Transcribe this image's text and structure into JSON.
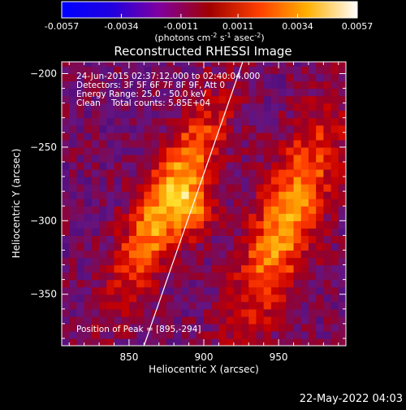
{
  "colorbar": {
    "ticks": [
      "-0.0057",
      "-0.0034",
      "-0.0011",
      "0.0011",
      "0.0034",
      "0.0057"
    ],
    "range": [
      -0.0057,
      0.0057
    ],
    "units_label": "(photons cm-2 s-1 asec-2)"
  },
  "title": "Reconstructed RHESSI Image",
  "info": {
    "line1": "24-Jun-2015 02:37:12.000 to 02:40:04.000",
    "line2": "Detectors: 3F 5F 6F 7F 8F 9F, Att 0",
    "line3": "Energy Range: 25.0 - 50.0 keV",
    "line4": "Clean    Total counts: 5.85E+04"
  },
  "peak_label": "Position of Peak = [895,-294]",
  "footer_date": "22-May-2022 04:03",
  "chart_data": {
    "type": "heatmap",
    "title": "Reconstructed RHESSI Image",
    "xlabel": "Heliocentric X (arcsec)",
    "ylabel": "Heliocentric Y (arcsec)",
    "xlim": [
      805,
      995
    ],
    "ylim": [
      -385,
      -192
    ],
    "xticks": [
      850,
      900,
      950
    ],
    "yticks": [
      -200,
      -250,
      -300,
      -350
    ],
    "peak": {
      "x": 895,
      "y": -294
    },
    "limb_line": [
      [
        860,
        -385
      ],
      [
        926,
        -192
      ]
    ],
    "colormap": "rainbow-3",
    "colorbar_range": [
      -0.0057,
      0.0057
    ]
  }
}
